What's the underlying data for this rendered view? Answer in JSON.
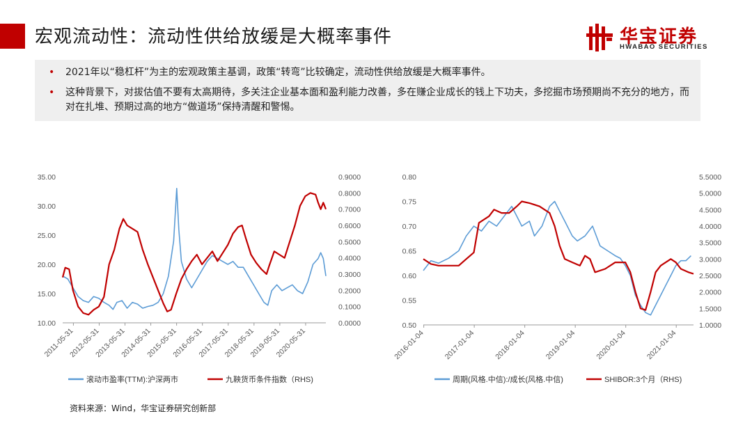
{
  "header": {
    "title": "宏观流动性：流动性供给放缓是大概率事件",
    "logo_cn": "华宝证券",
    "logo_en": "HWABAO SECURITIES",
    "accent_color": "#c00000"
  },
  "bullets": [
    "2021年以“稳杠杆”为主的宏观政策主基调，政策“转弯”比较确定，流动性供给放缓是大概率事件。",
    "这种背景下，对拔估值不要有太高期待，多关注企业基本面和盈利能力改善，多在赚企业成长的钱上下功夫，多挖掘市场预期尚不充分的地方，而对在扎堆、预期过高的地方“做道场”保持清醒和警惕。"
  ],
  "source": "资料来源：Wind，华宝证券研究创新部",
  "chart_data": [
    {
      "type": "line",
      "title": "",
      "x_ticks": [
        "2011-05-31",
        "2012-05-31",
        "2013-05-31",
        "2014-05-31",
        "2015-05-31",
        "2016-05-31",
        "2017-05-31",
        "2018-05-31",
        "2019-05-31",
        "2020-05-31"
      ],
      "x_range": [
        2011.0,
        2021.2
      ],
      "ylim_left": [
        10,
        35
      ],
      "y_ticks_left": [
        "10.00",
        "15.00",
        "20.00",
        "25.00",
        "30.00",
        "35.00"
      ],
      "ylim_right": [
        0,
        0.9
      ],
      "y_ticks_right": [
        "0.0000",
        "0.1000",
        "0.2000",
        "0.3000",
        "0.4000",
        "0.5000",
        "0.6000",
        "0.7000",
        "0.8000",
        "0.9000"
      ],
      "series": [
        {
          "name": "滚动市盈率(TTM):沪深两市",
          "axis": "left",
          "color": "#5b9bd5",
          "points": [
            [
              2011.0,
              18.0
            ],
            [
              2011.2,
              17.5
            ],
            [
              2011.4,
              16.0
            ],
            [
              2011.6,
              14.5
            ],
            [
              2011.8,
              13.8
            ],
            [
              2012.0,
              13.5
            ],
            [
              2012.2,
              14.5
            ],
            [
              2012.4,
              14.2
            ],
            [
              2012.6,
              13.5
            ],
            [
              2012.8,
              13.0
            ],
            [
              2012.95,
              12.3
            ],
            [
              2013.1,
              13.5
            ],
            [
              2013.3,
              13.8
            ],
            [
              2013.5,
              12.5
            ],
            [
              2013.7,
              13.5
            ],
            [
              2013.9,
              13.2
            ],
            [
              2014.1,
              12.5
            ],
            [
              2014.3,
              12.8
            ],
            [
              2014.5,
              13.0
            ],
            [
              2014.7,
              13.5
            ],
            [
              2014.9,
              15.0
            ],
            [
              2015.1,
              18.0
            ],
            [
              2015.3,
              24.0
            ],
            [
              2015.42,
              33.0
            ],
            [
              2015.5,
              26.0
            ],
            [
              2015.6,
              20.5
            ],
            [
              2015.8,
              17.5
            ],
            [
              2016.0,
              16.0
            ],
            [
              2016.2,
              17.5
            ],
            [
              2016.4,
              19.0
            ],
            [
              2016.6,
              20.5
            ],
            [
              2016.8,
              21.5
            ],
            [
              2017.0,
              21.0
            ],
            [
              2017.2,
              20.5
            ],
            [
              2017.4,
              20.0
            ],
            [
              2017.6,
              20.5
            ],
            [
              2017.8,
              19.5
            ],
            [
              2018.0,
              19.5
            ],
            [
              2018.2,
              18.0
            ],
            [
              2018.4,
              16.5
            ],
            [
              2018.6,
              15.0
            ],
            [
              2018.8,
              13.5
            ],
            [
              2018.95,
              13.0
            ],
            [
              2019.1,
              15.5
            ],
            [
              2019.3,
              16.5
            ],
            [
              2019.5,
              15.5
            ],
            [
              2019.7,
              16.0
            ],
            [
              2019.9,
              16.5
            ],
            [
              2020.1,
              15.5
            ],
            [
              2020.3,
              15.0
            ],
            [
              2020.5,
              17.0
            ],
            [
              2020.7,
              20.0
            ],
            [
              2020.9,
              21.0
            ],
            [
              2021.0,
              22.0
            ],
            [
              2021.1,
              21.0
            ],
            [
              2021.2,
              18.0
            ]
          ]
        },
        {
          "name": "九鞅货币条件指数（RHS)",
          "axis": "right",
          "color": "#c00000",
          "points": [
            [
              2011.0,
              0.28
            ],
            [
              2011.1,
              0.34
            ],
            [
              2011.25,
              0.33
            ],
            [
              2011.4,
              0.2
            ],
            [
              2011.6,
              0.1
            ],
            [
              2011.8,
              0.06
            ],
            [
              2012.0,
              0.05
            ],
            [
              2012.2,
              0.08
            ],
            [
              2012.4,
              0.1
            ],
            [
              2012.6,
              0.16
            ],
            [
              2012.8,
              0.36
            ],
            [
              2013.0,
              0.45
            ],
            [
              2013.2,
              0.58
            ],
            [
              2013.35,
              0.64
            ],
            [
              2013.5,
              0.6
            ],
            [
              2013.7,
              0.58
            ],
            [
              2013.9,
              0.56
            ],
            [
              2014.1,
              0.45
            ],
            [
              2014.3,
              0.36
            ],
            [
              2014.5,
              0.28
            ],
            [
              2014.7,
              0.2
            ],
            [
              2014.9,
              0.12
            ],
            [
              2015.05,
              0.07
            ],
            [
              2015.2,
              0.08
            ],
            [
              2015.4,
              0.18
            ],
            [
              2015.6,
              0.27
            ],
            [
              2015.8,
              0.33
            ],
            [
              2016.0,
              0.38
            ],
            [
              2016.2,
              0.42
            ],
            [
              2016.4,
              0.36
            ],
            [
              2016.6,
              0.4
            ],
            [
              2016.8,
              0.44
            ],
            [
              2017.0,
              0.38
            ],
            [
              2017.2,
              0.43
            ],
            [
              2017.4,
              0.48
            ],
            [
              2017.6,
              0.55
            ],
            [
              2017.8,
              0.59
            ],
            [
              2017.95,
              0.6
            ],
            [
              2018.1,
              0.52
            ],
            [
              2018.3,
              0.42
            ],
            [
              2018.5,
              0.37
            ],
            [
              2018.7,
              0.33
            ],
            [
              2018.9,
              0.3
            ],
            [
              2019.0,
              0.35
            ],
            [
              2019.2,
              0.44
            ],
            [
              2019.4,
              0.42
            ],
            [
              2019.6,
              0.4
            ],
            [
              2019.8,
              0.5
            ],
            [
              2020.0,
              0.6
            ],
            [
              2020.2,
              0.72
            ],
            [
              2020.4,
              0.78
            ],
            [
              2020.6,
              0.8
            ],
            [
              2020.8,
              0.79
            ],
            [
              2020.9,
              0.74
            ],
            [
              2021.0,
              0.7
            ],
            [
              2021.1,
              0.74
            ],
            [
              2021.2,
              0.7
            ]
          ]
        }
      ]
    },
    {
      "type": "line",
      "title": "",
      "x_ticks": [
        "2016-01-04",
        "2017-01-04",
        "2018-01-04",
        "2019-01-04",
        "2020-01-04",
        "2021-01-04"
      ],
      "x_range": [
        2016.0,
        2021.35
      ],
      "ylim_left": [
        0.5,
        0.8
      ],
      "y_ticks_left": [
        "0.50",
        "0.55",
        "0.60",
        "0.65",
        "0.70",
        "0.75",
        "0.80"
      ],
      "ylim_right": [
        1.0,
        5.5
      ],
      "y_ticks_right": [
        "1.0000",
        "1.5000",
        "2.0000",
        "2.5000",
        "3.0000",
        "3.5000",
        "4.0000",
        "4.5000",
        "5.0000",
        "5.5000"
      ],
      "series": [
        {
          "name": "周期(风格.中信):/成长(风格.中信)",
          "axis": "left",
          "color": "#5b9bd5",
          "points": [
            [
              2016.0,
              0.61
            ],
            [
              2016.15,
              0.63
            ],
            [
              2016.3,
              0.625
            ],
            [
              2016.5,
              0.635
            ],
            [
              2016.7,
              0.65
            ],
            [
              2016.85,
              0.68
            ],
            [
              2017.0,
              0.7
            ],
            [
              2017.15,
              0.69
            ],
            [
              2017.3,
              0.71
            ],
            [
              2017.45,
              0.7
            ],
            [
              2017.6,
              0.72
            ],
            [
              2017.75,
              0.74
            ],
            [
              2017.85,
              0.72
            ],
            [
              2017.95,
              0.7
            ],
            [
              2018.1,
              0.71
            ],
            [
              2018.2,
              0.68
            ],
            [
              2018.35,
              0.7
            ],
            [
              2018.5,
              0.74
            ],
            [
              2018.6,
              0.75
            ],
            [
              2018.7,
              0.73
            ],
            [
              2018.8,
              0.71
            ],
            [
              2018.95,
              0.68
            ],
            [
              2019.05,
              0.67
            ],
            [
              2019.2,
              0.68
            ],
            [
              2019.35,
              0.7
            ],
            [
              2019.5,
              0.66
            ],
            [
              2019.65,
              0.65
            ],
            [
              2019.8,
              0.64
            ],
            [
              2019.9,
              0.635
            ],
            [
              2020.0,
              0.62
            ],
            [
              2020.1,
              0.6
            ],
            [
              2020.2,
              0.56
            ],
            [
              2020.3,
              0.54
            ],
            [
              2020.4,
              0.525
            ],
            [
              2020.5,
              0.52
            ],
            [
              2020.6,
              0.54
            ],
            [
              2020.7,
              0.56
            ],
            [
              2020.8,
              0.58
            ],
            [
              2020.9,
              0.6
            ],
            [
              2021.0,
              0.62
            ],
            [
              2021.1,
              0.63
            ],
            [
              2021.2,
              0.63
            ],
            [
              2021.3,
              0.64
            ]
          ]
        },
        {
          "name": "SHIBOR:3个月（RHS)",
          "axis": "right",
          "color": "#c00000",
          "points": [
            [
              2016.0,
              3.0
            ],
            [
              2016.15,
              2.85
            ],
            [
              2016.3,
              2.8
            ],
            [
              2016.5,
              2.8
            ],
            [
              2016.7,
              2.8
            ],
            [
              2016.85,
              3.0
            ],
            [
              2017.0,
              3.2
            ],
            [
              2017.1,
              4.1
            ],
            [
              2017.3,
              4.3
            ],
            [
              2017.4,
              4.5
            ],
            [
              2017.55,
              4.4
            ],
            [
              2017.7,
              4.4
            ],
            [
              2017.85,
              4.6
            ],
            [
              2017.95,
              4.75
            ],
            [
              2018.1,
              4.7
            ],
            [
              2018.3,
              4.6
            ],
            [
              2018.5,
              4.4
            ],
            [
              2018.6,
              4.0
            ],
            [
              2018.7,
              3.4
            ],
            [
              2018.8,
              3.0
            ],
            [
              2018.95,
              2.9
            ],
            [
              2019.1,
              2.8
            ],
            [
              2019.2,
              3.1
            ],
            [
              2019.3,
              3.0
            ],
            [
              2019.4,
              2.6
            ],
            [
              2019.6,
              2.7
            ],
            [
              2019.8,
              2.9
            ],
            [
              2020.0,
              2.9
            ],
            [
              2020.1,
              2.6
            ],
            [
              2020.2,
              2.0
            ],
            [
              2020.3,
              1.5
            ],
            [
              2020.4,
              1.45
            ],
            [
              2020.5,
              2.0
            ],
            [
              2020.6,
              2.6
            ],
            [
              2020.7,
              2.8
            ],
            [
              2020.8,
              2.9
            ],
            [
              2020.9,
              3.0
            ],
            [
              2021.0,
              2.9
            ],
            [
              2021.1,
              2.7
            ],
            [
              2021.25,
              2.6
            ],
            [
              2021.35,
              2.55
            ]
          ]
        }
      ]
    }
  ]
}
